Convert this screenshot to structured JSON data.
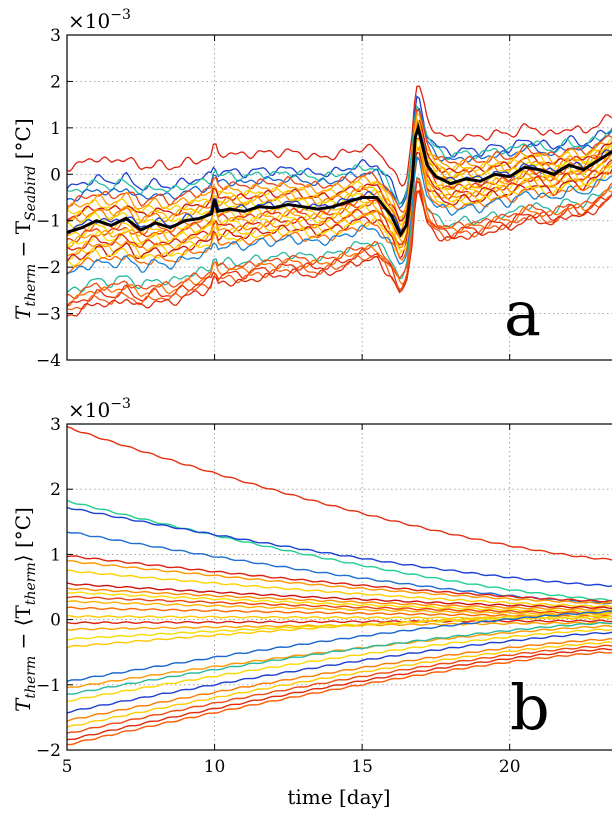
{
  "chart_data": [
    {
      "id": "a",
      "type": "line",
      "panel_label": "a",
      "ylabel_main": "T",
      "ylabel_sub1": "therm",
      "ylabel_mid": " − T",
      "ylabel_sub2": "Seabird",
      "ylabel_unit": " [°C]",
      "scale_base": "×10",
      "scale_exp": "−3",
      "xlim": [
        5,
        23.5
      ],
      "ylim": [
        -4,
        3
      ],
      "xticks": [
        5,
        10,
        15,
        20
      ],
      "xtick_labels": [
        "",
        "",
        "",
        ""
      ],
      "yticks": [
        -4,
        -3,
        -2,
        -1,
        0,
        1,
        2,
        3
      ],
      "ytick_labels": [
        "−4",
        "−3",
        "−2",
        "−1",
        "0",
        "1",
        "2",
        "3"
      ],
      "grid": true,
      "legend": "none",
      "mean_series": {
        "color": "#000000",
        "x": [
          5,
          5.5,
          6,
          6.5,
          7,
          7.5,
          8,
          8.5,
          9,
          9.5,
          9.9,
          10,
          10.1,
          10.5,
          11,
          11.5,
          12,
          12.5,
          13,
          13.5,
          14,
          14.5,
          15,
          15.5,
          16,
          16.3,
          16.5,
          16.7,
          16.8,
          16.9,
          17.2,
          17.5,
          18,
          18.5,
          19,
          19.5,
          20,
          20.5,
          21,
          21.5,
          22,
          22.5,
          23,
          23.5
        ],
        "values": [
          -1.25,
          -1.15,
          -1.0,
          -1.1,
          -0.95,
          -1.2,
          -1.05,
          -1.15,
          -1.0,
          -0.95,
          -0.85,
          -0.55,
          -0.8,
          -0.75,
          -0.8,
          -0.7,
          -0.72,
          -0.65,
          -0.7,
          -0.75,
          -0.7,
          -0.6,
          -0.5,
          -0.5,
          -0.9,
          -1.3,
          -1.1,
          -0.1,
          0.8,
          1.0,
          0.2,
          -0.05,
          -0.2,
          -0.1,
          -0.15,
          0.0,
          -0.05,
          0.15,
          0.1,
          0.0,
          0.2,
          0.1,
          0.3,
          0.5
        ]
      },
      "offsets": [
        1.4,
        0.95,
        0.85,
        0.7,
        0.62,
        0.5,
        0.4,
        0.32,
        0.25,
        0.2,
        0.12,
        0.05,
        -0.05,
        -0.1,
        -0.18,
        -0.25,
        -0.32,
        -0.4,
        -0.48,
        -0.55,
        -0.62,
        -0.7,
        -0.8,
        -0.9,
        -1.3,
        -1.4,
        -1.5,
        -1.6,
        -1.7,
        -1.8
      ],
      "series_colors": [
        "#dd2211",
        "#1f3fd0",
        "#25c1a0",
        "#1a66cc",
        "#e94412",
        "#ff9900",
        "#ffd000",
        "#cc1111",
        "#ffb300",
        "#ff7a00",
        "#f0e000",
        "#1f3fd0",
        "#ff5a00",
        "#ffcc00",
        "#e63a10",
        "#ffa500",
        "#ffe000",
        "#dd2211",
        "#ff8c00",
        "#ffc800",
        "#c81414",
        "#ffd700",
        "#ff6a00",
        "#1a80d0",
        "#2ab8a0",
        "#ee4a12",
        "#ff7200",
        "#e83010",
        "#f06018",
        "#e02a0c"
      ]
    },
    {
      "id": "b",
      "type": "line",
      "panel_label": "b",
      "ylabel_main": "T",
      "ylabel_sub1": "therm",
      "ylabel_mid": " − ⟨T",
      "ylabel_sub2": "therm",
      "ylabel_close": "⟩",
      "ylabel_unit": " [°C]",
      "scale_base": "×10",
      "scale_exp": "−3",
      "xlabel": "time [day]",
      "xlim": [
        5,
        23.5
      ],
      "ylim": [
        -2,
        3
      ],
      "xticks": [
        5,
        10,
        15,
        20
      ],
      "xtick_labels": [
        "5",
        "10",
        "15",
        "20"
      ],
      "yticks": [
        -2,
        -1,
        0,
        1,
        2,
        3
      ],
      "ytick_labels": [
        "−2",
        "−1",
        "0",
        "1",
        "2",
        "3"
      ],
      "grid": true,
      "legend": "none",
      "series": [
        {
          "color": "#e63010",
          "start": 2.95,
          "end": 0.92
        },
        {
          "color": "#20d090",
          "start": 1.82,
          "end": 0.3
        },
        {
          "color": "#1a40d8",
          "start": 1.72,
          "end": 0.52
        },
        {
          "color": "#1f6fd0",
          "start": 1.35,
          "end": 0.25
        },
        {
          "color": "#dd2211",
          "start": 0.98,
          "end": 0.28
        },
        {
          "color": "#ff9900",
          "start": 0.9,
          "end": 0.25
        },
        {
          "color": "#ffd000",
          "start": 0.75,
          "end": 0.2
        },
        {
          "color": "#cc1111",
          "start": 0.55,
          "end": 0.18
        },
        {
          "color": "#ff8c00",
          "start": 0.48,
          "end": 0.15
        },
        {
          "color": "#ffe000",
          "start": 0.42,
          "end": 0.12
        },
        {
          "color": "#e94412",
          "start": 0.35,
          "end": 0.1
        },
        {
          "color": "#ffb300",
          "start": 0.28,
          "end": 0.08
        },
        {
          "color": "#ff6a00",
          "start": 0.18,
          "end": 0.05
        },
        {
          "color": "#ffcc00",
          "start": 0.05,
          "end": 0.02
        },
        {
          "color": "#dd2211",
          "start": -0.05,
          "end": -0.02
        },
        {
          "color": "#ffa500",
          "start": -0.15,
          "end": -0.05
        },
        {
          "color": "#f0e000",
          "start": -0.3,
          "end": 0.05
        },
        {
          "color": "#ffc800",
          "start": -0.42,
          "end": 0.1
        },
        {
          "color": "#1a66cc",
          "start": -0.95,
          "end": 0.12
        },
        {
          "color": "#ff9900",
          "start": -1.05,
          "end": -0.1
        },
        {
          "color": "#2ab8a0",
          "start": -1.15,
          "end": -0.05
        },
        {
          "color": "#ffd700",
          "start": -1.25,
          "end": -0.15
        },
        {
          "color": "#1f3fd0",
          "start": -1.42,
          "end": -0.2
        },
        {
          "color": "#ff7a00",
          "start": -1.55,
          "end": -0.3
        },
        {
          "color": "#ffcc00",
          "start": -1.65,
          "end": -0.35
        },
        {
          "color": "#ee4a12",
          "start": -1.75,
          "end": -0.4
        },
        {
          "color": "#e02a0c",
          "start": -1.85,
          "end": -0.45
        },
        {
          "color": "#ff5a00",
          "start": -1.92,
          "end": -0.5
        }
      ]
    }
  ]
}
